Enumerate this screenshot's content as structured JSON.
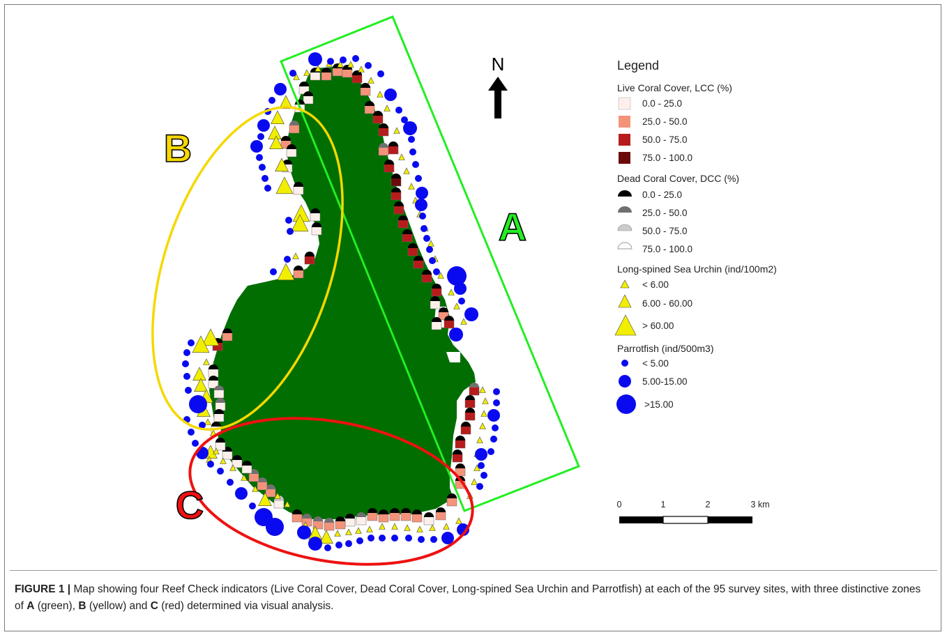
{
  "legend": {
    "title": "Legend",
    "lcc_title": "Live Coral Cover, LCC (%)",
    "lcc_items": [
      {
        "label": "0.0 - 25.0",
        "color": "#fdf0ea"
      },
      {
        "label": "25.0 - 50.0",
        "color": "#f4937a"
      },
      {
        "label": "50.0 - 75.0",
        "color": "#b71c1c"
      },
      {
        "label": "75.0 - 100.0",
        "color": "#6b0a0a"
      }
    ],
    "dcc_title": "Dead Coral Cover, DCC (%)",
    "dcc_items": [
      {
        "label": "0.0 - 25.0",
        "color": "#000000"
      },
      {
        "label": "25.0 - 50.0",
        "color": "#707070"
      },
      {
        "label": "50.0 - 75.0",
        "color": "#cccccc"
      },
      {
        "label": "75.0 - 100.0",
        "color": "#ffffff"
      }
    ],
    "urchin_title": "Long-spined Sea Urchin (ind/100m2)",
    "urchin_items": [
      {
        "label": "< 6.00"
      },
      {
        "label": " 6.00 - 60.00"
      },
      {
        "label": "> 60.00"
      }
    ],
    "parrot_title": "Parrotfish (ind/500m3)",
    "parrot_items": [
      {
        "label": "< 5.00"
      },
      {
        "label": "5.00-15.00"
      },
      {
        "label": ">15.00"
      }
    ]
  },
  "north_label": "N",
  "scale_labels": [
    "0",
    "1",
    "2",
    "3 km"
  ],
  "zones": [
    {
      "label": "A",
      "color": "#22ee22"
    },
    {
      "label": "B",
      "color": "#f5d800"
    },
    {
      "label": "C",
      "color": "#ee1111"
    }
  ],
  "colors": {
    "island": "#006e00",
    "parrotfish": "#0a0af0",
    "urchin": "#f2ee00"
  },
  "caption": {
    "label": "FIGURE 1 |",
    "text_1": " Map showing four Reef Check indicators (Live Coral Cover, Dead Coral Cover, Long-spined Sea Urchin and Parrotfish) at each of the 95 survey sites, with three distinctive zones of ",
    "zone_a": "A",
    "text_2": " (green), ",
    "zone_b": "B",
    "text_3": " (yellow) and ",
    "zone_c": "C",
    "text_4": " (red) determined via visual analysis."
  }
}
